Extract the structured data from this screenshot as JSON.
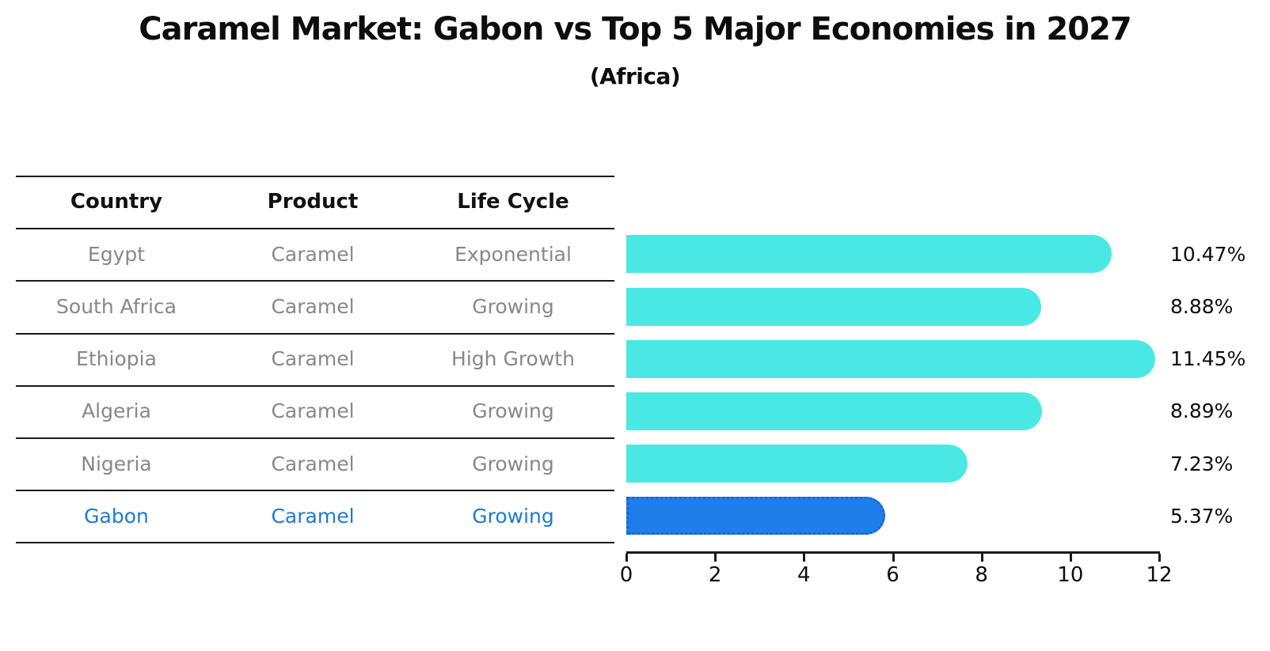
{
  "title": "Caramel Market: Gabon vs Top 5 Major Economies in 2027",
  "subtitle": "(Africa)",
  "table": {
    "headers": [
      "Country",
      "Product",
      "Life Cycle"
    ],
    "rows": [
      {
        "country": "Egypt",
        "product": "Caramel",
        "life_cycle": "Exponential",
        "highlighted": false
      },
      {
        "country": "South Africa",
        "product": "Caramel",
        "life_cycle": "Growing",
        "highlighted": false
      },
      {
        "country": "Ethiopia",
        "product": "Caramel",
        "life_cycle": "High Growth",
        "highlighted": false
      },
      {
        "country": "Algeria",
        "product": "Caramel",
        "life_cycle": "Growing",
        "highlighted": false
      },
      {
        "country": "Nigeria",
        "product": "Caramel",
        "life_cycle": "Growing",
        "highlighted": false
      },
      {
        "country": "Gabon",
        "product": "Caramel",
        "life_cycle": "Growing",
        "highlighted": true
      }
    ]
  },
  "chart_data": {
    "type": "bar",
    "orientation": "horizontal",
    "title": "Caramel Market: Gabon vs Top 5 Major Economies in 2027",
    "subtitle": "(Africa)",
    "categories": [
      "Egypt",
      "South Africa",
      "Ethiopia",
      "Algeria",
      "Nigeria",
      "Gabon"
    ],
    "values": [
      10.47,
      8.88,
      11.45,
      8.89,
      7.23,
      5.37
    ],
    "value_labels": [
      "10.47%",
      "8.88%",
      "11.45%",
      "8.89%",
      "7.23%",
      "5.37%"
    ],
    "xlim": [
      0,
      12
    ],
    "x_ticks": [
      0,
      2,
      4,
      6,
      8,
      10,
      12
    ],
    "grid": false,
    "legend": "none",
    "bar_color": "#4ae8e4",
    "highlight_index": 5,
    "highlight_color": "#1f7eea",
    "highlight_border_color": "#1c66cc"
  },
  "colors": {
    "header_text": "#111111",
    "row_text": "#888888",
    "highlight_text": "#1f78d4",
    "line": "#1a1a1a",
    "label_text": "#0d0d0d"
  }
}
